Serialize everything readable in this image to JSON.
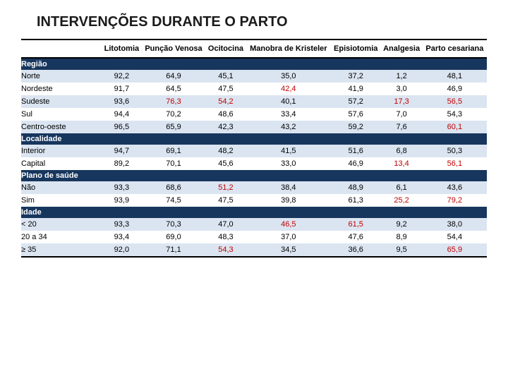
{
  "title": "INTERVENÇÕES DURANTE O PARTO",
  "columns": [
    "",
    "Litotomia",
    "Punção Venosa",
    "Ocitocina",
    "Manobra de Kristeler",
    "Episiotomia",
    "Analgesia",
    "Parto cesariana"
  ],
  "sections": [
    {
      "label": "Região",
      "rows": [
        {
          "label": "Norte",
          "cells": [
            "92,2",
            "64,9",
            "45,1",
            "35,0",
            "37,2",
            "1,2",
            "48,1"
          ],
          "alt": true,
          "hl": []
        },
        {
          "label": "Nordeste",
          "cells": [
            "91,7",
            "64,5",
            "47,5",
            "42,4",
            "41,9",
            "3,0",
            "46,9"
          ],
          "alt": false,
          "hl": [
            3
          ]
        },
        {
          "label": "Sudeste",
          "cells": [
            "93,6",
            "76,3",
            "54,2",
            "40,1",
            "57,2",
            "17,3",
            "56,5"
          ],
          "alt": true,
          "hl": [
            1,
            2,
            5,
            6
          ]
        },
        {
          "label": "Sul",
          "cells": [
            "94,4",
            "70,2",
            "48,6",
            "33,4",
            "57,6",
            "7,0",
            "54,3"
          ],
          "alt": false,
          "hl": []
        },
        {
          "label": "Centro-oeste",
          "cells": [
            "96,5",
            "65,9",
            "42,3",
            "43,2",
            "59,2",
            "7,6",
            "60,1"
          ],
          "alt": true,
          "hl": [
            6
          ]
        }
      ]
    },
    {
      "label": "Localidade",
      "rows": [
        {
          "label": "Interior",
          "cells": [
            "94,7",
            "69,1",
            "48,2",
            "41,5",
            "51,6",
            "6,8",
            "50,3"
          ],
          "alt": true,
          "hl": []
        },
        {
          "label": "Capital",
          "cells": [
            "89,2",
            "70,1",
            "45,6",
            "33,0",
            "46,9",
            "13,4",
            "56,1"
          ],
          "alt": false,
          "hl": [
            5,
            6
          ]
        }
      ]
    },
    {
      "label": "Plano de saúde",
      "rows": [
        {
          "label": "Não",
          "cells": [
            "93,3",
            "68,6",
            "51,2",
            "38,4",
            "48,9",
            "6,1",
            "43,6"
          ],
          "alt": true,
          "hl": [
            2
          ]
        },
        {
          "label": "Sim",
          "cells": [
            "93,9",
            "74,5",
            "47,5",
            "39,8",
            "61,3",
            "25,2",
            "79,2"
          ],
          "alt": false,
          "hl": [
            5,
            6
          ]
        }
      ]
    },
    {
      "label": "Idade",
      "rows": [
        {
          "label": "< 20",
          "cells": [
            "93,3",
            "70,3",
            "47,0",
            "46,5",
            "61,5",
            "9,2",
            "38,0"
          ],
          "alt": true,
          "hl": [
            3,
            4
          ]
        },
        {
          "label": "20 a 34",
          "cells": [
            "93,4",
            "69,0",
            "48,3",
            "37,0",
            "47,6",
            "8,9",
            "54,4"
          ],
          "alt": false,
          "hl": []
        },
        {
          "label": "≥ 35",
          "cells": [
            "92,0",
            "71,1",
            "54,3",
            "34,5",
            "36,6",
            "9,5",
            "65,9"
          ],
          "alt": true,
          "hl": [
            2,
            6
          ]
        }
      ]
    }
  ]
}
